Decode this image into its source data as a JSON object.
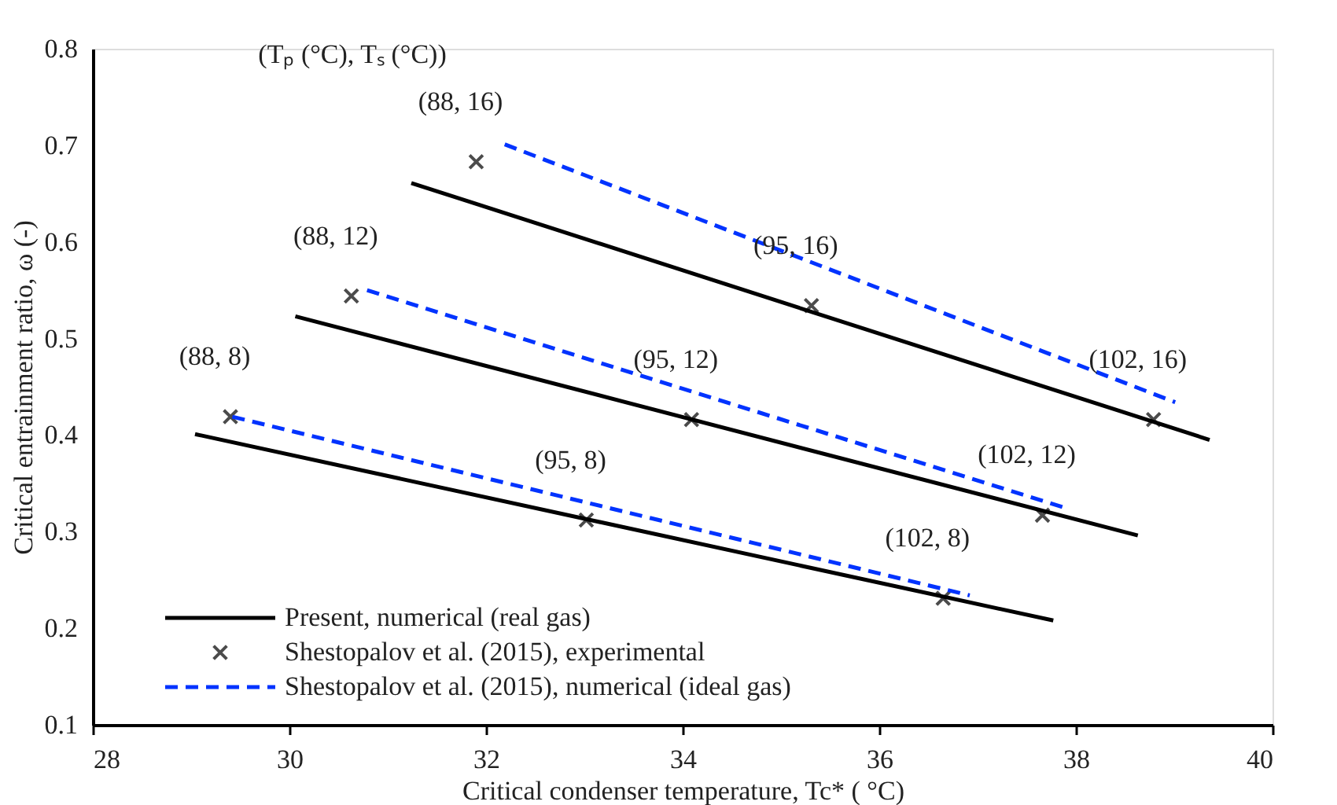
{
  "chart_data": {
    "type": "line",
    "xlabel": "Critical condenser temperature, Tc* ( °C)",
    "ylabel": "Critical entrainment ratio, ω  (-)",
    "xlim": [
      28,
      40
    ],
    "xticks": [
      28,
      30,
      32,
      34,
      36,
      38,
      40
    ],
    "ylim": [
      0.1,
      0.8
    ],
    "yticks": [
      0.1,
      0.2,
      0.3,
      0.4,
      0.5,
      0.6,
      0.7,
      0.8
    ],
    "grid": false,
    "legend": "bottom left",
    "series": [
      {
        "name": "Present, numerical (real gas)",
        "color": "#000000",
        "line_style": "solid",
        "marker": "none",
        "x": [
          31.24,
          39.36
        ],
        "values": [
          0.661,
          0.395
        ]
      },
      {
        "color": "#000000",
        "line_style": "solid",
        "marker": "none",
        "x": [
          30.06,
          38.63
        ],
        "values": [
          0.523,
          0.296
        ]
      },
      {
        "color": "#000000",
        "line_style": "solid",
        "marker": "none",
        "x": [
          29.04,
          37.77
        ],
        "values": [
          0.401,
          0.208
        ]
      },
      {
        "name": "Shestopalov et al. (2015), experimental",
        "type": "scatter",
        "color": "#000000",
        "marker": "cross",
        "x": [
          31.9,
          35.31,
          38.79,
          30.63,
          34.09,
          37.66,
          29.4,
          33.02,
          36.65
        ],
        "values": [
          0.683,
          0.534,
          0.416,
          0.544,
          0.416,
          0.317,
          0.419,
          0.312,
          0.231
        ]
      },
      {
        "name": "Shestopalov et al. (2015), numerical (ideal gas)",
        "type": "line",
        "color": "#0033ff",
        "line_style": "dashed",
        "marker": "none",
        "x": [
          32.19,
          39.01
        ],
        "values": [
          0.701,
          0.434
        ]
      },
      {
        "type": "line",
        "color": "#0033ff",
        "line_style": "dashed",
        "marker": "none",
        "x": [
          30.79,
          37.91
        ],
        "values": [
          0.55,
          0.324
        ]
      },
      {
        "type": "line",
        "color": "#0033ff",
        "line_style": "dashed",
        "marker": "none",
        "x": [
          29.42,
          36.92
        ],
        "values": [
          0.419,
          0.234
        ]
      }
    ],
    "annotations": [
      "(Tₚ (°C), Tₛ (°C))",
      {
        "text": "(88, 16)",
        "x": 31.9,
        "y": 0.683
      },
      {
        "text": "(95, 16)",
        "x": 35.31,
        "y": 0.534
      },
      {
        "text": "(102, 16)",
        "x": 38.79,
        "y": 0.416
      },
      {
        "text": "(88, 12)",
        "x": 30.63,
        "y": 0.544
      },
      {
        "text": "(95, 12)",
        "x": 34.09,
        "y": 0.416
      },
      {
        "text": "(102, 12)",
        "x": 37.66,
        "y": 0.317
      },
      {
        "text": "(88, 8)",
        "x": 29.4,
        "y": 0.419
      },
      {
        "text": "(95, 8)",
        "x": 33.02,
        "y": 0.312
      },
      {
        "text": "(102, 8)",
        "x": 36.65,
        "y": 0.231
      }
    ]
  }
}
